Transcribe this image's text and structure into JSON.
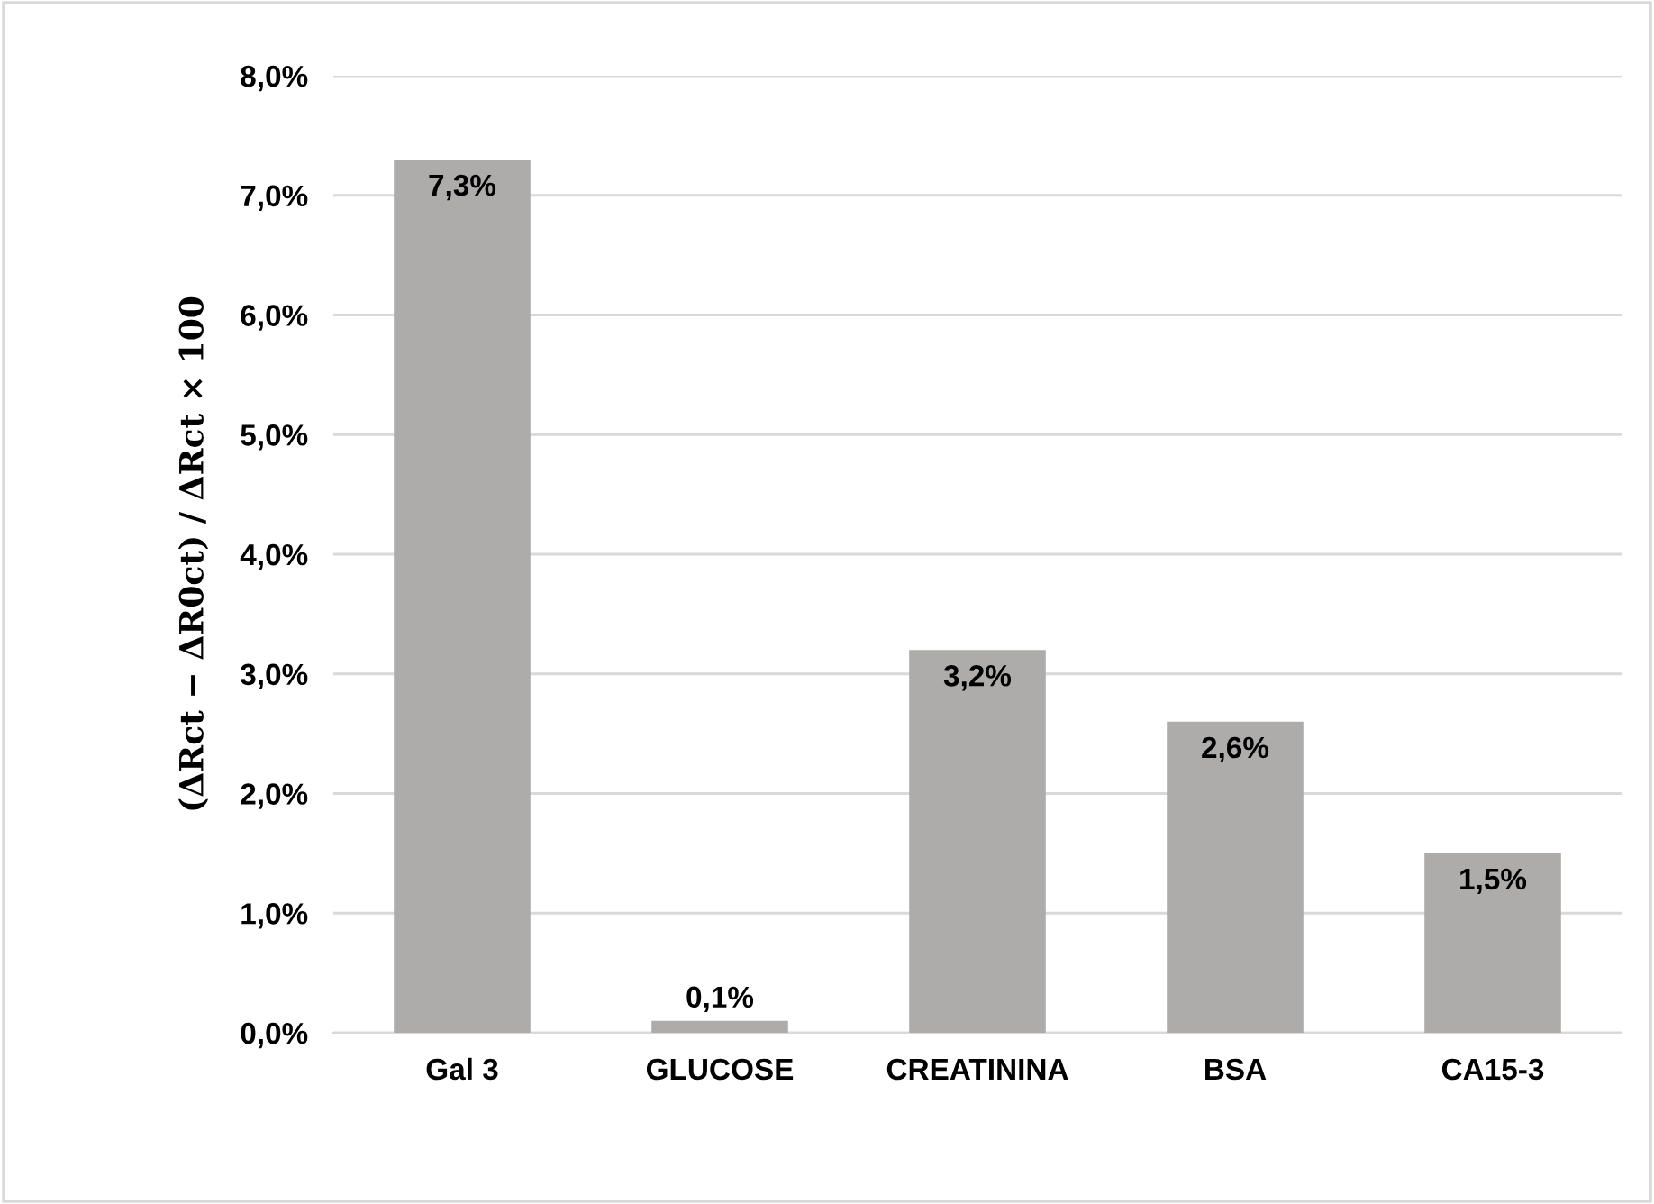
{
  "chart_data": {
    "type": "bar",
    "ylabel": "(ΔRct − ΔR0ct) / ΔRct × 100",
    "categories": [
      "Gal 3",
      "GLUCOSE",
      "CREATININA",
      "BSA",
      "CA15-3"
    ],
    "values": [
      7.3,
      0.1,
      3.2,
      2.6,
      1.5
    ],
    "value_labels": [
      "7,3%",
      "0,1%",
      "3,2%",
      "2,6%",
      "1,5%"
    ],
    "color": "#aeabab",
    "ylim": [
      0,
      8
    ],
    "yticks": [
      {
        "value": 0,
        "label": "0,0%"
      },
      {
        "value": 1,
        "label": "1,0%"
      },
      {
        "value": 2,
        "label": "2,0%"
      },
      {
        "value": 3,
        "label": "3,0%"
      },
      {
        "value": 4,
        "label": "4,0%"
      },
      {
        "value": 5,
        "label": "5,0%"
      },
      {
        "value": 6,
        "label": "6,0%"
      },
      {
        "value": 7,
        "label": "7,0%"
      },
      {
        "value": 8,
        "label": "8,0%"
      }
    ],
    "grid": "y",
    "legend": false
  }
}
